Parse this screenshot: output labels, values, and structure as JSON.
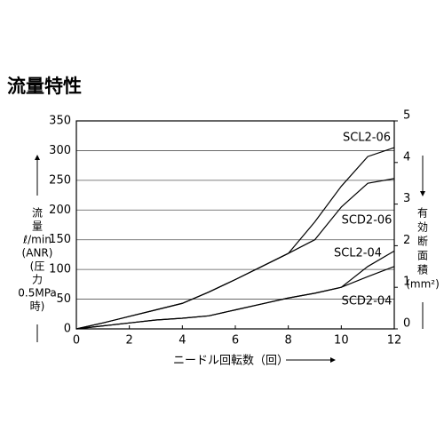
{
  "chart_data": {
    "type": "line",
    "title": "流量特性",
    "x_label": "ニードル回転数（回）",
    "y_label": [
      "流",
      "量",
      "ℓ/min",
      "(ANR)",
      "(圧",
      "力",
      "0.5MPa",
      "時)"
    ],
    "y2_label": [
      "有",
      "効",
      "断",
      "面",
      "積",
      "(mm²)"
    ],
    "x": [
      0,
      1,
      2,
      3,
      4,
      5,
      6,
      7,
      8,
      9,
      10,
      11,
      12
    ],
    "xlim": [
      0,
      12
    ],
    "xticks": [
      0,
      2,
      4,
      6,
      8,
      10,
      12
    ],
    "ylim": [
      0,
      350
    ],
    "yticks": [
      0,
      50,
      100,
      150,
      200,
      250,
      300,
      350
    ],
    "y2lim": [
      0,
      5
    ],
    "y2ticks": [
      0,
      1,
      2,
      3,
      4,
      5
    ],
    "grid": true,
    "series": [
      {
        "name": "SCL2-06",
        "color": "#000000",
        "values": [
          0,
          10,
          21,
          32,
          43,
          62,
          83,
          105,
          127,
          180,
          240,
          290,
          305
        ]
      },
      {
        "name": "SCD2-06",
        "color": "#000000",
        "values": [
          0,
          10,
          21,
          32,
          43,
          62,
          83,
          105,
          127,
          150,
          205,
          245,
          253
        ]
      },
      {
        "name": "SCL2-04",
        "color": "#000000",
        "values": [
          0,
          5,
          10,
          15,
          18,
          22,
          32,
          42,
          52,
          60,
          70,
          105,
          131
        ]
      },
      {
        "name": "SCD2-04",
        "color": "#000000",
        "values": [
          0,
          5,
          10,
          15,
          18,
          22,
          32,
          42,
          52,
          60,
          70,
          88,
          105
        ]
      }
    ]
  }
}
